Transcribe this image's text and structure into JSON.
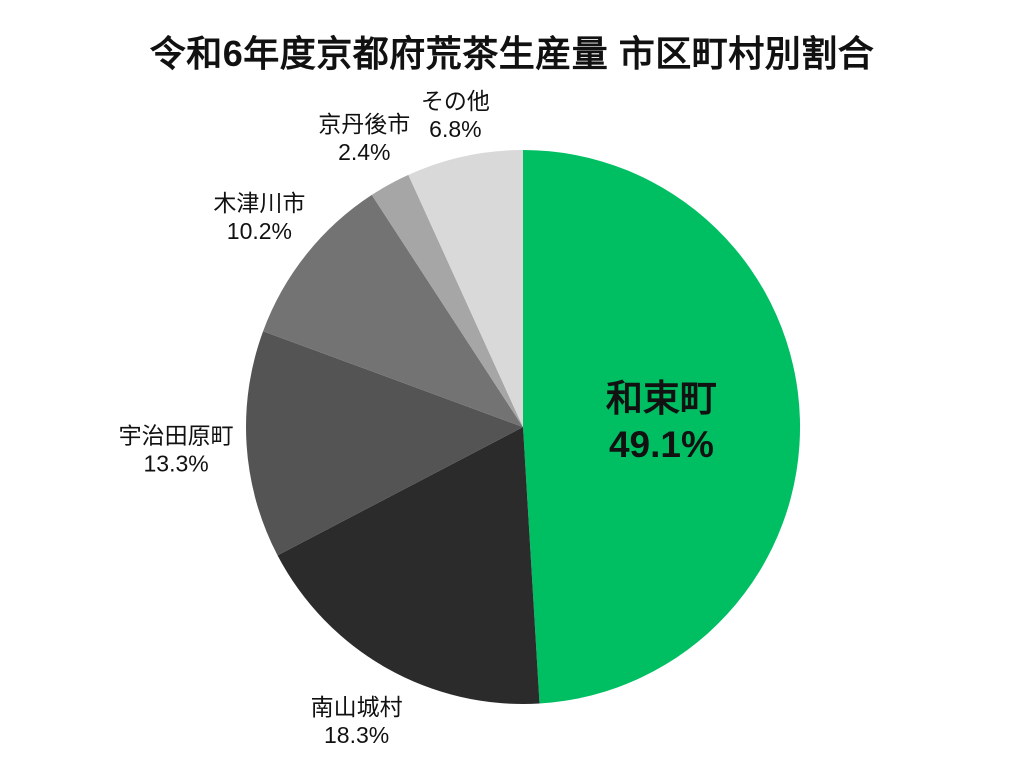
{
  "page": {
    "background": "#ffffff",
    "text_color": "#111111"
  },
  "chart_data": {
    "type": "pie",
    "title": "令和6年度京都府荒茶生産量 市区町村別割合",
    "categories": [
      "和束町",
      "南山城村",
      "宇治田原町",
      "木津川市",
      "京丹後市",
      "その他"
    ],
    "values": [
      49.1,
      18.3,
      13.3,
      10.2,
      2.4,
      6.8
    ],
    "value_labels": [
      "49.1%",
      "18.3%",
      "13.3%",
      "10.2%",
      "2.4%",
      "6.8%"
    ],
    "colors": [
      "#00bf63",
      "#2b2b2b",
      "#545454",
      "#737373",
      "#a6a6a6",
      "#d9d9d9"
    ],
    "start_angle_deg": 0,
    "direction": "clockwise",
    "legend": "none",
    "labels_placement": "outside two-line labels; largest slice labeled inside in bold",
    "label_color": "#111111"
  }
}
